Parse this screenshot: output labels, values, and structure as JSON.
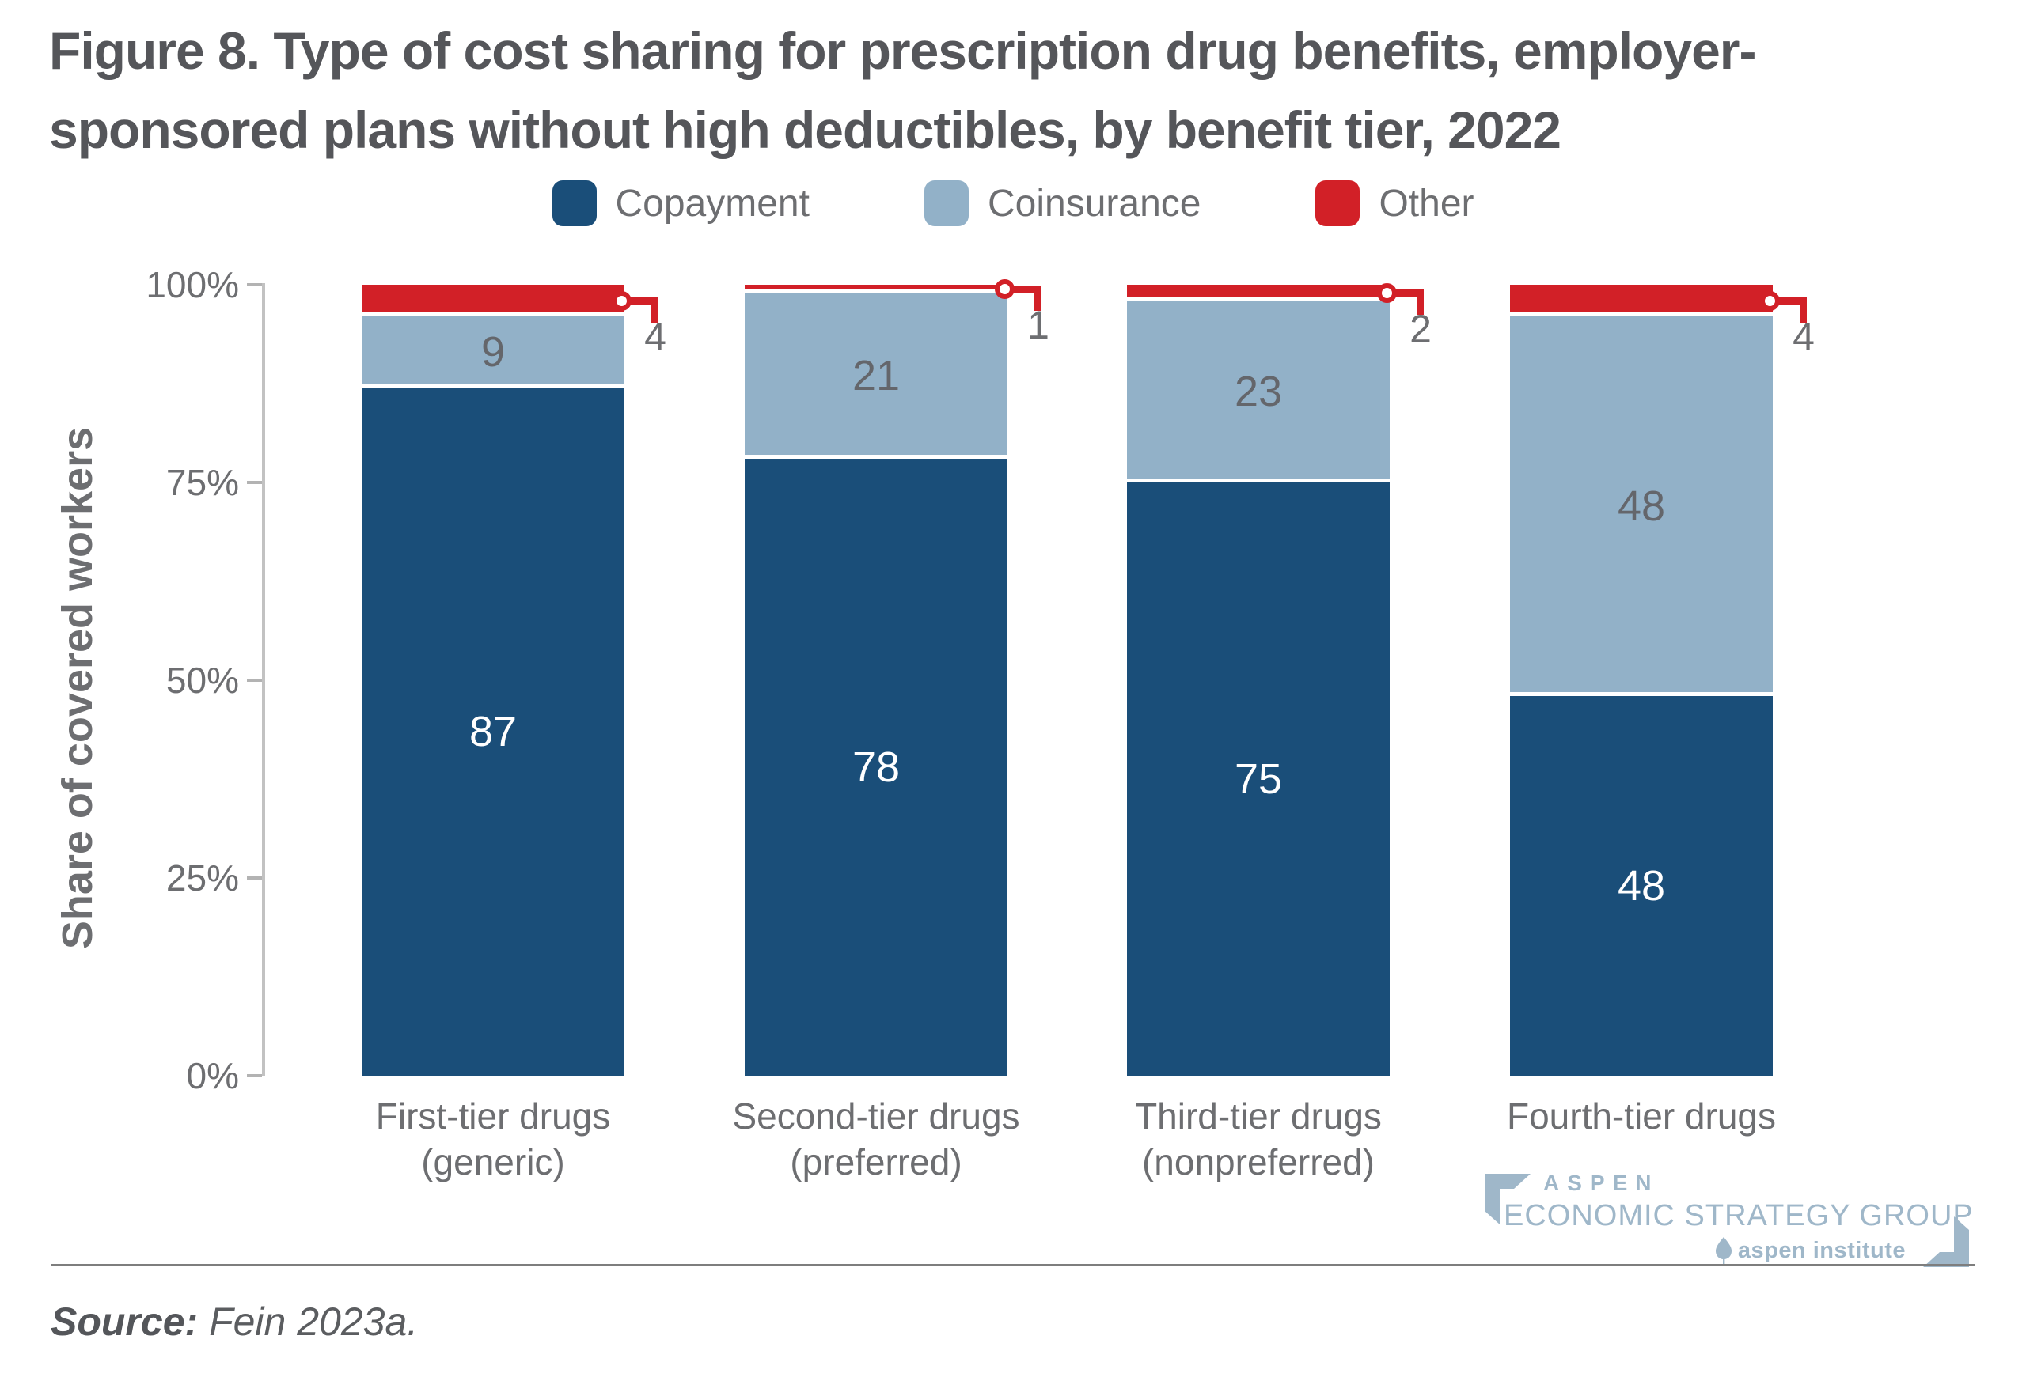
{
  "title": "Figure 8. Type of cost sharing for prescription drug benefits, employer-sponsored plans without high deductibles, by benefit tier, 2022",
  "legend": {
    "items": [
      {
        "label": "Copayment",
        "color": "#1A4E79"
      },
      {
        "label": "Coinsurance",
        "color": "#92B1C8"
      },
      {
        "label": "Other",
        "color": "#D22027"
      }
    ]
  },
  "y_axis": {
    "title": "Share of covered workers",
    "tick_labels": [
      "100%",
      "75%",
      "50%",
      "25%",
      "0%"
    ],
    "tick_values": [
      100,
      75,
      50,
      25,
      0
    ]
  },
  "chart_data": {
    "type": "bar",
    "stacked": true,
    "title": "Figure 8. Type of cost sharing for prescription drug benefits, employer-sponsored plans without high deductibles, by benefit tier, 2022",
    "xlabel": "",
    "ylabel": "Share of covered workers",
    "ylim": [
      0,
      100
    ],
    "grid": false,
    "legend_position": "top",
    "categories": [
      "First-tier drugs\n(generic)",
      "Second-tier drugs\n(preferred)",
      "Third-tier drugs\n(nonpreferred)",
      "Fourth-tier drugs"
    ],
    "series": [
      {
        "name": "Copayment",
        "color": "#1A4E79",
        "values": [
          87,
          78,
          75,
          48
        ]
      },
      {
        "name": "Coinsurance",
        "color": "#92B1C8",
        "values": [
          9,
          21,
          23,
          48
        ]
      },
      {
        "name": "Other",
        "color": "#D22027",
        "values": [
          4,
          1,
          2,
          4
        ]
      }
    ]
  },
  "footer": {
    "source_label": "Source:",
    "source_text": " Fein 2023a."
  },
  "logo": {
    "line1": "ASPEN",
    "line2": "ECONOMIC STRATEGY GROUP",
    "line3": "aspen institute"
  },
  "colors": {
    "copayment": "#1A4E79",
    "coinsurance": "#92B1C8",
    "other": "#D22027",
    "title_text": "#55565A",
    "axis_text": "#6D6E71",
    "axis_line": "#C2C2C2",
    "logo_blue": "#9FB7C9"
  }
}
